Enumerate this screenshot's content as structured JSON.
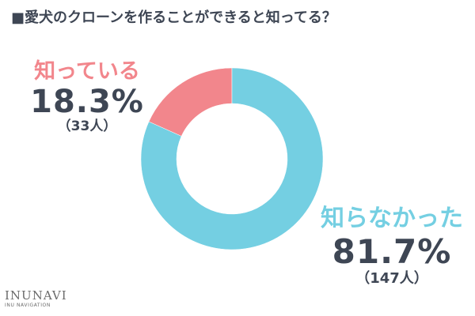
{
  "chart_data": {
    "type": "pie",
    "title": "■愛犬のクローンを作ることができると知ってる？",
    "slices": [
      {
        "label": "知っている",
        "value": 18.3,
        "value_text": "18.3%",
        "count_text": "（33人）",
        "color": "#f2868c"
      },
      {
        "label": "知らなかった",
        "value": 81.7,
        "value_text": "81.7%",
        "count_text": "（147人）",
        "color": "#74cfe2"
      }
    ],
    "donut": true
  },
  "logo": {
    "main": "INUNAVI",
    "sub": "INU NAVIGATION"
  },
  "colors": {
    "text": "#3e4654",
    "knows": "#f2868c",
    "not_know": "#74cfe2"
  }
}
